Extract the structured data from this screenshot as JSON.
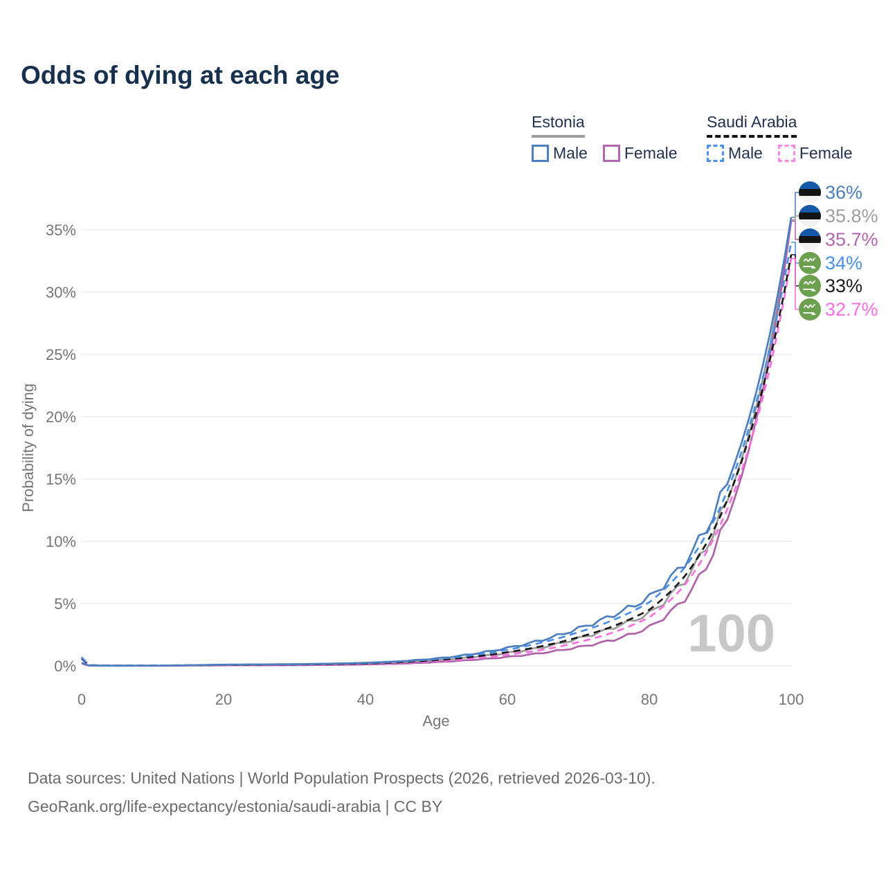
{
  "title": "Odds of dying at each age",
  "legend": {
    "groups": [
      {
        "label": "Estonia",
        "line_style": "solid",
        "underline_color": "#9e9e9e",
        "items": [
          {
            "label": "Male",
            "color": "#4d7fc0"
          },
          {
            "label": "Female",
            "color": "#b465b0"
          }
        ]
      },
      {
        "label": "Saudi Arabia",
        "line_style": "dashed",
        "underline_color": "#141414",
        "items": [
          {
            "label": "Male",
            "color": "#4a90e9"
          },
          {
            "label": "Female",
            "color": "#fb87e7"
          }
        ]
      }
    ]
  },
  "watermark": "100",
  "footer": {
    "line1": "Data sources: United Nations | World Population Prospects (2026, retrieved 2026-03-10).",
    "line2": "GeoRank.org/life-expectancy/estonia/saudi-arabia | CC BY"
  },
  "chart_data": {
    "type": "line",
    "title": "Odds of dying at each age",
    "xlabel": "Age",
    "ylabel": "Probability of dying",
    "xlim": [
      0,
      100
    ],
    "ylim_percent": [
      0,
      37
    ],
    "x_ticks": [
      0,
      20,
      40,
      60,
      80,
      100
    ],
    "y_ticks": [
      "0%",
      "5%",
      "10%",
      "15%",
      "20%",
      "25%",
      "30%",
      "35%"
    ],
    "grid": "horizontal-only",
    "legend_position": "top-right",
    "hover_age_indicator": "100",
    "series": [
      {
        "name": "Estonia Male",
        "country": "Estonia",
        "flag": "estonia",
        "line": "solid",
        "color": "#4d7fc0",
        "label_color": "#4d7fc0",
        "end_label": "36%",
        "end_value": 36.0,
        "jitter": true,
        "points": [
          [
            0,
            0.25
          ],
          [
            1,
            0.03
          ],
          [
            5,
            0.02
          ],
          [
            10,
            0.02
          ],
          [
            15,
            0.05
          ],
          [
            20,
            0.1
          ],
          [
            25,
            0.12
          ],
          [
            30,
            0.14
          ],
          [
            35,
            0.18
          ],
          [
            40,
            0.25
          ],
          [
            45,
            0.38
          ],
          [
            50,
            0.6
          ],
          [
            55,
            0.95
          ],
          [
            60,
            1.45
          ],
          [
            65,
            2.1
          ],
          [
            70,
            3.0
          ],
          [
            75,
            4.1
          ],
          [
            80,
            5.5
          ],
          [
            85,
            8.3
          ],
          [
            90,
            13.3
          ],
          [
            95,
            21.8
          ],
          [
            100,
            36.0
          ]
        ]
      },
      {
        "name": "Estonia (both sexes)",
        "country": "Estonia",
        "flag": "estonia",
        "line": "solid",
        "color": "#9b9b9b",
        "label_color": "#9e9e9e",
        "end_label": "35.8%",
        "end_value": 35.8,
        "jitter": true,
        "points": [
          [
            0,
            0.22
          ],
          [
            1,
            0.025
          ],
          [
            5,
            0.015
          ],
          [
            10,
            0.015
          ],
          [
            15,
            0.04
          ],
          [
            20,
            0.07
          ],
          [
            25,
            0.09
          ],
          [
            30,
            0.1
          ],
          [
            35,
            0.13
          ],
          [
            40,
            0.18
          ],
          [
            45,
            0.28
          ],
          [
            50,
            0.45
          ],
          [
            55,
            0.7
          ],
          [
            60,
            1.05
          ],
          [
            65,
            1.5
          ],
          [
            70,
            2.2
          ],
          [
            75,
            3.1
          ],
          [
            80,
            4.2
          ],
          [
            85,
            6.9
          ],
          [
            90,
            11.9
          ],
          [
            95,
            20.6
          ],
          [
            100,
            35.8
          ]
        ]
      },
      {
        "name": "Estonia Female",
        "country": "Estonia",
        "flag": "estonia",
        "line": "solid",
        "color": "#ae63a8",
        "label_color": "#b465b0",
        "end_label": "35.7%",
        "end_value": 35.7,
        "jitter": true,
        "points": [
          [
            0,
            0.2
          ],
          [
            1,
            0.02
          ],
          [
            5,
            0.01
          ],
          [
            10,
            0.01
          ],
          [
            15,
            0.03
          ],
          [
            20,
            0.04
          ],
          [
            25,
            0.05
          ],
          [
            30,
            0.06
          ],
          [
            35,
            0.08
          ],
          [
            40,
            0.12
          ],
          [
            45,
            0.18
          ],
          [
            50,
            0.3
          ],
          [
            55,
            0.48
          ],
          [
            60,
            0.72
          ],
          [
            65,
            1.05
          ],
          [
            70,
            1.5
          ],
          [
            75,
            2.1
          ],
          [
            80,
            3.1
          ],
          [
            85,
            5.4
          ],
          [
            90,
            10.4
          ],
          [
            95,
            19.6
          ],
          [
            100,
            35.7
          ]
        ]
      },
      {
        "name": "Saudi Arabia Male",
        "country": "Saudi Arabia",
        "flag": "saudi",
        "line": "dashed",
        "color": "#4a90e9",
        "label_color": "#4a90e9",
        "end_label": "34%",
        "end_value": 34.0,
        "jitter": false,
        "points": [
          [
            0,
            0.7
          ],
          [
            1,
            0.06
          ],
          [
            5,
            0.03
          ],
          [
            10,
            0.03
          ],
          [
            15,
            0.06
          ],
          [
            20,
            0.09
          ],
          [
            25,
            0.11
          ],
          [
            30,
            0.13
          ],
          [
            35,
            0.17
          ],
          [
            40,
            0.23
          ],
          [
            45,
            0.35
          ],
          [
            50,
            0.55
          ],
          [
            55,
            0.85
          ],
          [
            60,
            1.3
          ],
          [
            65,
            1.9
          ],
          [
            70,
            2.7
          ],
          [
            75,
            3.7
          ],
          [
            80,
            5.1
          ],
          [
            85,
            7.9
          ],
          [
            90,
            12.7
          ],
          [
            95,
            21.0
          ],
          [
            100,
            34.0
          ]
        ]
      },
      {
        "name": "Saudi Arabia (both sexes)",
        "country": "Saudi Arabia",
        "flag": "saudi",
        "line": "dashed",
        "color": "#1a1a1a",
        "label_color": "#1a1a1a",
        "end_label": "33%",
        "end_value": 33.0,
        "jitter": false,
        "points": [
          [
            0,
            0.62
          ],
          [
            1,
            0.05
          ],
          [
            5,
            0.025
          ],
          [
            10,
            0.025
          ],
          [
            15,
            0.05
          ],
          [
            20,
            0.07
          ],
          [
            25,
            0.09
          ],
          [
            30,
            0.11
          ],
          [
            35,
            0.14
          ],
          [
            40,
            0.19
          ],
          [
            45,
            0.29
          ],
          [
            50,
            0.46
          ],
          [
            55,
            0.72
          ],
          [
            60,
            1.1
          ],
          [
            65,
            1.6
          ],
          [
            70,
            2.3
          ],
          [
            75,
            3.2
          ],
          [
            80,
            4.5
          ],
          [
            85,
            7.2
          ],
          [
            90,
            12.0
          ],
          [
            95,
            20.2
          ],
          [
            100,
            33.0
          ]
        ]
      },
      {
        "name": "Saudi Arabia Female",
        "country": "Saudi Arabia",
        "flag": "saudi",
        "line": "dashed",
        "color": "#fb6ee0",
        "label_color": "#fb6ee0",
        "end_label": "32.7%",
        "end_value": 32.7,
        "jitter": false,
        "points": [
          [
            0,
            0.55
          ],
          [
            1,
            0.045
          ],
          [
            5,
            0.02
          ],
          [
            10,
            0.02
          ],
          [
            15,
            0.04
          ],
          [
            20,
            0.05
          ],
          [
            25,
            0.07
          ],
          [
            30,
            0.09
          ],
          [
            35,
            0.11
          ],
          [
            40,
            0.15
          ],
          [
            45,
            0.23
          ],
          [
            50,
            0.37
          ],
          [
            55,
            0.58
          ],
          [
            60,
            0.9
          ],
          [
            65,
            1.3
          ],
          [
            70,
            1.9
          ],
          [
            75,
            2.7
          ],
          [
            80,
            3.9
          ],
          [
            85,
            6.5
          ],
          [
            90,
            11.3
          ],
          [
            95,
            19.4
          ],
          [
            100,
            32.7
          ]
        ]
      }
    ],
    "colors": {
      "grid": "#e9e9e9",
      "axis_text": "#757575",
      "watermark": "#c7c7c7",
      "estonia_flag_blue": "#1559a8",
      "estonia_flag_black": "#141414",
      "estonia_flag_white": "#f2f2f2",
      "saudi_flag_green": "#6ba04f"
    }
  }
}
